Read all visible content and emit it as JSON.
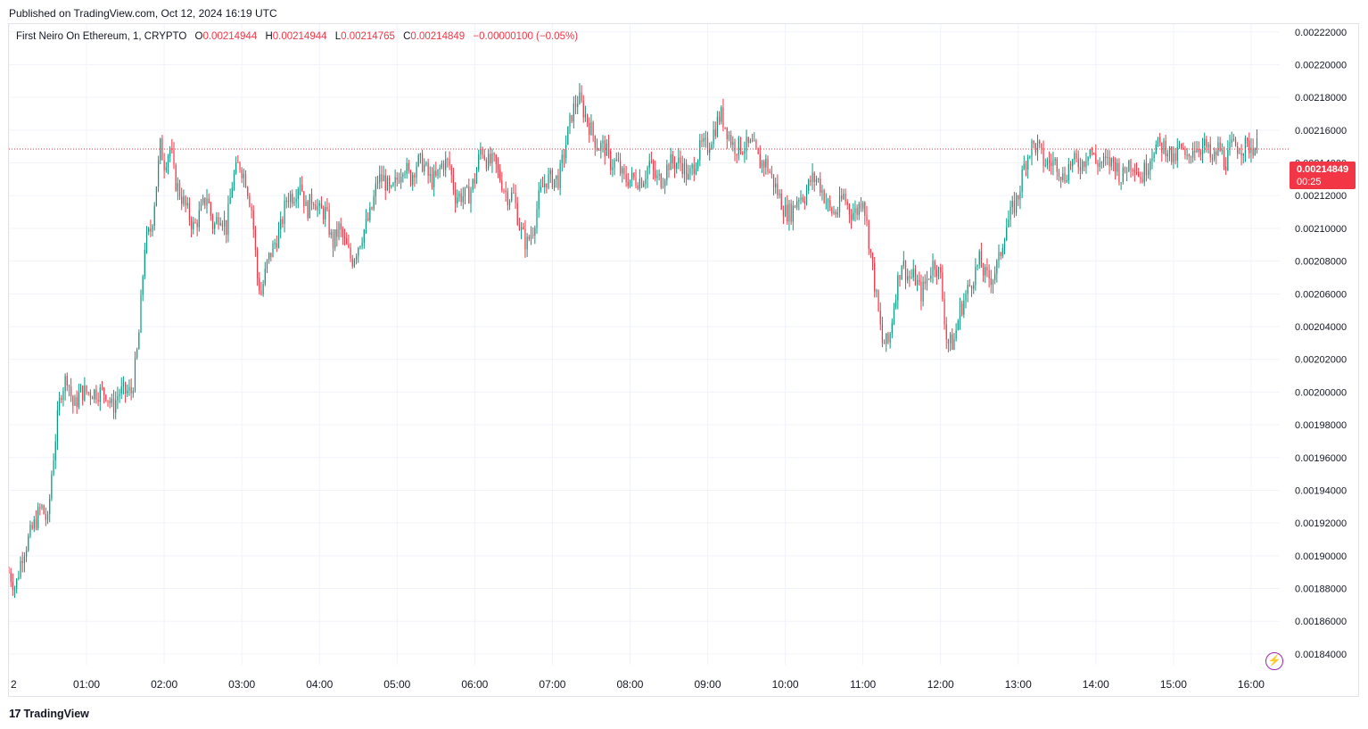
{
  "header": {
    "published": "Published on TradingView.com, Oct 12, 2024 16:19 UTC"
  },
  "legend": {
    "symbol": "First Neiro On Ethereum, 1, CRYPTO",
    "o_label": "O",
    "o_value": "0.00214944",
    "h_label": "H",
    "h_value": "0.00214944",
    "l_label": "L",
    "l_value": "0.00214765",
    "c_label": "C",
    "c_value": "0.00214849",
    "change": "−0.00000100 (−0.05%)"
  },
  "price_tag": {
    "price": "0.00214849",
    "countdown": "00:25"
  },
  "footer": {
    "brand": "TradingView"
  },
  "colors": {
    "up": "#089981",
    "down": "#f23645",
    "grid": "#f0f3fa",
    "text": "#131722",
    "accent": "#9c27b0"
  },
  "icons": {
    "brand": "tradingview-logo",
    "lightning": "lightning-icon"
  },
  "chart_data": {
    "type": "candlestick",
    "interval": "1 minute",
    "y_axis": {
      "ticks": [
        0.00184,
        0.00186,
        0.00188,
        0.0019,
        0.00192,
        0.00194,
        0.00196,
        0.00198,
        0.002,
        0.00202,
        0.00204,
        0.00206,
        0.00208,
        0.0021,
        0.00212,
        0.00214,
        0.00216,
        0.00218,
        0.0022,
        0.00222
      ],
      "tick_labels": [
        "0.00184000",
        "0.00186000",
        "0.00188000",
        "0.00190000",
        "0.00192000",
        "0.00194000",
        "0.00196000",
        "0.00198000",
        "0.00200000",
        "0.00202000",
        "0.00204000",
        "0.00206000",
        "0.00208000",
        "0.00210000",
        "0.00212000",
        "0.00214000",
        "0.00216000",
        "0.00218000",
        "0.00220000",
        "0.00222000"
      ],
      "range": [
        0.0018334,
        0.0022248
      ],
      "position": "right"
    },
    "x_axis": {
      "tick_labels": [
        "2",
        "01:00",
        "02:00",
        "03:00",
        "04:00",
        "05:00",
        "06:00",
        "07:00",
        "08:00",
        "09:00",
        "10:00",
        "11:00",
        "12:00",
        "13:00",
        "14:00",
        "15:00",
        "16:00"
      ],
      "tick_minutes": [
        0,
        60,
        120,
        180,
        240,
        300,
        360,
        420,
        480,
        540,
        600,
        660,
        720,
        780,
        840,
        900,
        960
      ],
      "range_minutes": [
        0,
        1020
      ]
    },
    "last_price": 0.00214849,
    "grid": true,
    "price_path": [
      [
        0,
        0.00189
      ],
      [
        5,
        0.00188
      ],
      [
        10,
        0.0019
      ],
      [
        15,
        0.00191
      ],
      [
        20,
        0.00192
      ],
      [
        25,
        0.00193
      ],
      [
        30,
        0.00192
      ],
      [
        33,
        0.00195
      ],
      [
        37,
        0.00198
      ],
      [
        40,
        0.002
      ],
      [
        45,
        0.00201
      ],
      [
        50,
        0.00199
      ],
      [
        55,
        0.002
      ],
      [
        60,
        0.002
      ],
      [
        65,
        0.002
      ],
      [
        70,
        0.002
      ],
      [
        75,
        0.002
      ],
      [
        80,
        0.00199
      ],
      [
        85,
        0.002
      ],
      [
        90,
        0.002
      ],
      [
        95,
        0.002
      ],
      [
        100,
        0.00203
      ],
      [
        105,
        0.00209
      ],
      [
        110,
        0.0021
      ],
      [
        113,
        0.00212
      ],
      [
        117,
        0.00215
      ],
      [
        120,
        0.00214
      ],
      [
        125,
        0.00215
      ],
      [
        128,
        0.00213
      ],
      [
        133,
        0.00212
      ],
      [
        138,
        0.00211
      ],
      [
        143,
        0.0021
      ],
      [
        148,
        0.00211
      ],
      [
        153,
        0.00212
      ],
      [
        158,
        0.0021
      ],
      [
        163,
        0.00211
      ],
      [
        168,
        0.0021
      ],
      [
        173,
        0.00213
      ],
      [
        178,
        0.00214
      ],
      [
        183,
        0.00213
      ],
      [
        188,
        0.00211
      ],
      [
        192,
        0.00207
      ],
      [
        195,
        0.00206
      ],
      [
        200,
        0.00208
      ],
      [
        205,
        0.00209
      ],
      [
        210,
        0.0021
      ],
      [
        215,
        0.00212
      ],
      [
        220,
        0.00212
      ],
      [
        225,
        0.00213
      ],
      [
        230,
        0.00211
      ],
      [
        235,
        0.00212
      ],
      [
        240,
        0.00211
      ],
      [
        245,
        0.00211
      ],
      [
        250,
        0.00209
      ],
      [
        255,
        0.0021
      ],
      [
        260,
        0.00209
      ],
      [
        265,
        0.00208
      ],
      [
        270,
        0.00209
      ],
      [
        275,
        0.0021
      ],
      [
        280,
        0.00211
      ],
      [
        285,
        0.00213
      ],
      [
        290,
        0.00213
      ],
      [
        295,
        0.00212
      ],
      [
        300,
        0.00213
      ],
      [
        305,
        0.00214
      ],
      [
        310,
        0.00213
      ],
      [
        315,
        0.00214
      ],
      [
        320,
        0.00214
      ],
      [
        325,
        0.00213
      ],
      [
        330,
        0.00213
      ],
      [
        335,
        0.00214
      ],
      [
        340,
        0.00214
      ],
      [
        345,
        0.00212
      ],
      [
        350,
        0.00212
      ],
      [
        355,
        0.00212
      ],
      [
        360,
        0.00213
      ],
      [
        365,
        0.00215
      ],
      [
        370,
        0.00214
      ],
      [
        375,
        0.00214
      ],
      [
        380,
        0.00213
      ],
      [
        385,
        0.00212
      ],
      [
        390,
        0.00212
      ],
      [
        395,
        0.0021
      ],
      [
        400,
        0.00209
      ],
      [
        405,
        0.0021
      ],
      [
        410,
        0.00212
      ],
      [
        415,
        0.00213
      ],
      [
        420,
        0.00213
      ],
      [
        425,
        0.00213
      ],
      [
        430,
        0.00215
      ],
      [
        435,
        0.00217
      ],
      [
        440,
        0.00218
      ],
      [
        445,
        0.00217
      ],
      [
        450,
        0.00216
      ],
      [
        455,
        0.00215
      ],
      [
        460,
        0.00215
      ],
      [
        465,
        0.00214
      ],
      [
        470,
        0.00214
      ],
      [
        475,
        0.00213
      ],
      [
        480,
        0.00213
      ],
      [
        485,
        0.00213
      ],
      [
        490,
        0.00213
      ],
      [
        495,
        0.00214
      ],
      [
        500,
        0.00213
      ],
      [
        505,
        0.00213
      ],
      [
        510,
        0.00214
      ],
      [
        515,
        0.00214
      ],
      [
        520,
        0.00214
      ],
      [
        525,
        0.00213
      ],
      [
        530,
        0.00214
      ],
      [
        535,
        0.00215
      ],
      [
        540,
        0.00215
      ],
      [
        545,
        0.00216
      ],
      [
        550,
        0.00217
      ],
      [
        555,
        0.00216
      ],
      [
        560,
        0.00215
      ],
      [
        565,
        0.00215
      ],
      [
        570,
        0.00215
      ],
      [
        575,
        0.00215
      ],
      [
        580,
        0.00214
      ],
      [
        585,
        0.00214
      ],
      [
        590,
        0.00213
      ],
      [
        595,
        0.00212
      ],
      [
        600,
        0.00211
      ],
      [
        605,
        0.00211
      ],
      [
        610,
        0.00212
      ],
      [
        615,
        0.00212
      ],
      [
        620,
        0.00213
      ],
      [
        625,
        0.00213
      ],
      [
        630,
        0.00212
      ],
      [
        635,
        0.00211
      ],
      [
        640,
        0.00211
      ],
      [
        645,
        0.00212
      ],
      [
        650,
        0.00211
      ],
      [
        655,
        0.00211
      ],
      [
        660,
        0.00212
      ],
      [
        665,
        0.00209
      ],
      [
        670,
        0.00206
      ],
      [
        675,
        0.00203
      ],
      [
        680,
        0.00203
      ],
      [
        685,
        0.00206
      ],
      [
        690,
        0.00208
      ],
      [
        695,
        0.00207
      ],
      [
        700,
        0.00207
      ],
      [
        705,
        0.00206
      ],
      [
        710,
        0.00207
      ],
      [
        715,
        0.00208
      ],
      [
        720,
        0.00207
      ],
      [
        725,
        0.00203
      ],
      [
        730,
        0.00203
      ],
      [
        735,
        0.00205
      ],
      [
        740,
        0.00206
      ],
      [
        745,
        0.00207
      ],
      [
        750,
        0.00208
      ],
      [
        755,
        0.00207
      ],
      [
        760,
        0.00207
      ],
      [
        765,
        0.00208
      ],
      [
        770,
        0.0021
      ],
      [
        775,
        0.00211
      ],
      [
        780,
        0.00212
      ],
      [
        785,
        0.00214
      ],
      [
        790,
        0.00215
      ],
      [
        795,
        0.00215
      ],
      [
        800,
        0.00214
      ],
      [
        805,
        0.00214
      ],
      [
        810,
        0.00214
      ],
      [
        815,
        0.00213
      ],
      [
        820,
        0.00214
      ],
      [
        825,
        0.00214
      ],
      [
        830,
        0.00214
      ],
      [
        835,
        0.00215
      ],
      [
        840,
        0.00214
      ],
      [
        845,
        0.00214
      ],
      [
        850,
        0.00214
      ],
      [
        855,
        0.00214
      ],
      [
        860,
        0.00213
      ],
      [
        865,
        0.00214
      ],
      [
        870,
        0.00214
      ],
      [
        875,
        0.00213
      ],
      [
        880,
        0.00214
      ],
      [
        885,
        0.00215
      ],
      [
        890,
        0.00215
      ],
      [
        895,
        0.00215
      ],
      [
        900,
        0.00214
      ],
      [
        905,
        0.00215
      ],
      [
        910,
        0.00214
      ],
      [
        915,
        0.00215
      ],
      [
        920,
        0.00215
      ],
      [
        925,
        0.00215
      ],
      [
        930,
        0.00214
      ],
      [
        935,
        0.00215
      ],
      [
        940,
        0.00214
      ],
      [
        945,
        0.00215
      ],
      [
        950,
        0.00215
      ],
      [
        955,
        0.00215
      ],
      [
        960,
        0.00215
      ],
      [
        965,
        0.00215
      ]
    ]
  }
}
